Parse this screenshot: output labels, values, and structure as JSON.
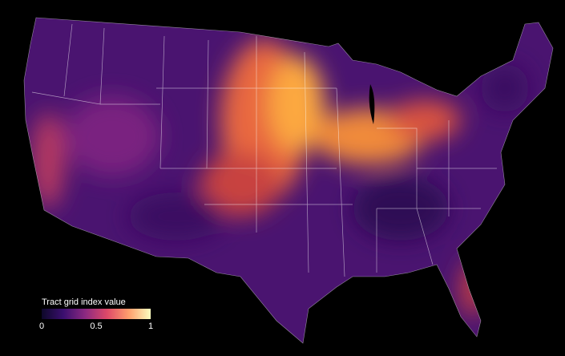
{
  "legend": {
    "title": "Tract grid index value",
    "lim": [
      0,
      1
    ],
    "ticks": [
      0,
      0.5,
      1
    ],
    "colors": [
      "#0d0829",
      "#3b0f6f",
      "#8c2981",
      "#de4968",
      "#fe9f6d",
      "#fcfdbf"
    ]
  }
}
